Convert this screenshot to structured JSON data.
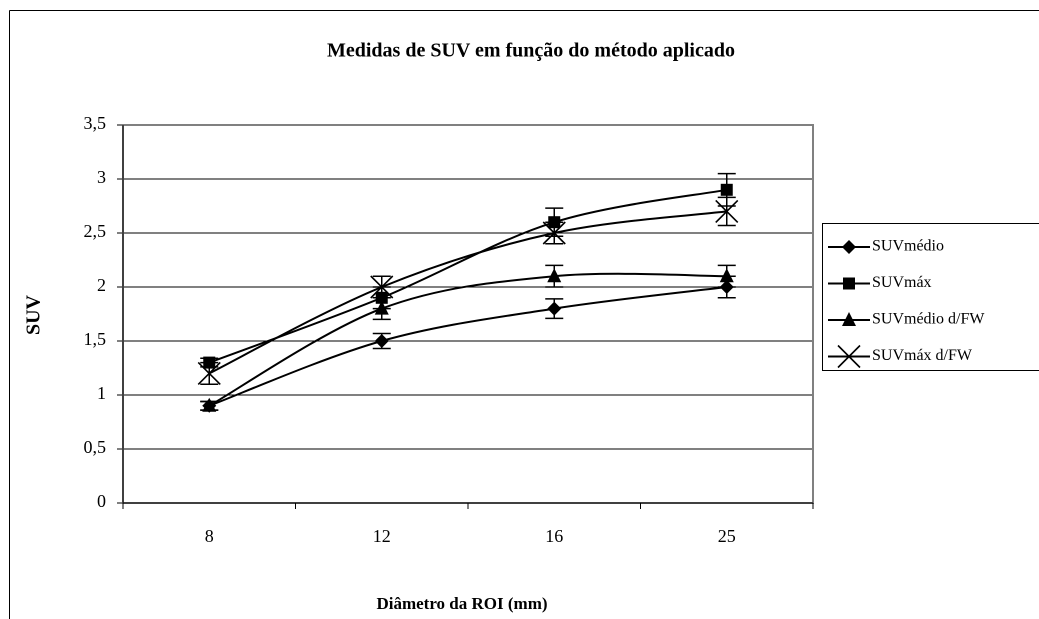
{
  "chart_data": {
    "type": "line",
    "title": "Medidas de SUV em função do método aplicado",
    "x_label": "Diâmetro da ROI (mm)",
    "y_label": "SUV",
    "categories": [
      "8",
      "12",
      "16",
      "25"
    ],
    "series": [
      {
        "name": "SUVmédio",
        "color": "#000000",
        "marker": "diamond",
        "values": [
          0.9,
          1.5,
          1.8,
          2.0
        ],
        "errors": [
          0.04,
          0.07,
          0.09,
          0.1
        ]
      },
      {
        "name": "SUVmáx",
        "color": "#000000",
        "marker": "square",
        "values": [
          1.3,
          1.9,
          2.6,
          2.9
        ],
        "errors": [
          0.04,
          0.1,
          0.13,
          0.15
        ]
      },
      {
        "name": "SUVmédio d/FW",
        "color": "#000000",
        "marker": "triangle",
        "values": [
          0.9,
          1.8,
          2.1,
          2.1
        ],
        "errors": [
          0.04,
          0.1,
          0.1,
          0.1
        ]
      },
      {
        "name": "SUVmáx d/FW",
        "color": "#000000",
        "marker": "x",
        "values": [
          1.2,
          2.0,
          2.5,
          2.7
        ],
        "errors": [
          0.1,
          0.1,
          0.1,
          0.13
        ]
      }
    ],
    "ylim": [
      0,
      3.5
    ],
    "yticks": [
      0,
      {
        "value": 0.5,
        "label": "0,5"
      },
      1,
      {
        "value": 1.5,
        "label": "1,5"
      },
      2,
      {
        "value": 2.5,
        "label": "2,5"
      },
      3,
      {
        "value": 3.5,
        "label": "3,5"
      }
    ],
    "grid": true,
    "smooth": true,
    "legend": "right"
  }
}
